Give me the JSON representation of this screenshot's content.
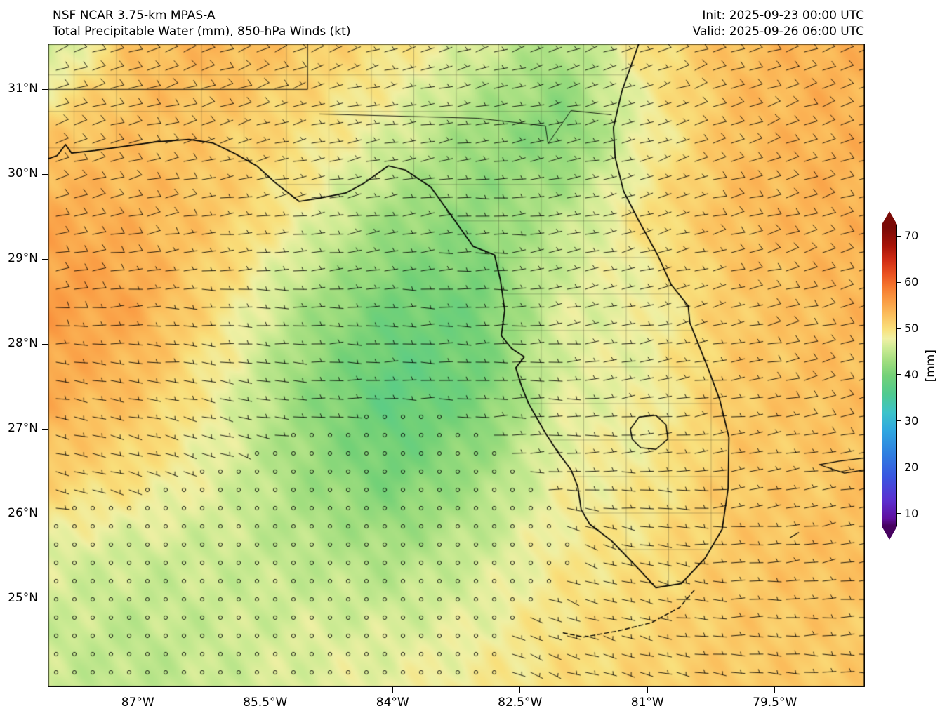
{
  "header": {
    "title_line1": "NSF NCAR 3.75-km MPAS-A",
    "title_line2": "Total Precipitable Water (mm), 850-hPa Winds (kt)",
    "init_label": "Init: 2025-09-23 00:00 UTC",
    "valid_label": "Valid: 2025-09-26 06:00 UTC"
  },
  "axes": {
    "x_ticks": [
      {
        "label": "87°W",
        "lon": -87
      },
      {
        "label": "85.5°W",
        "lon": -85.5
      },
      {
        "label": "84°W",
        "lon": -84
      },
      {
        "label": "82.5°W",
        "lon": -82.5
      },
      {
        "label": "81°W",
        "lon": -81
      },
      {
        "label": "79.5°W",
        "lon": -79.5
      }
    ],
    "y_ticks": [
      {
        "label": "31°N",
        "lat": 31
      },
      {
        "label": "30°N",
        "lat": 30
      },
      {
        "label": "29°N",
        "lat": 29
      },
      {
        "label": "28°N",
        "lat": 28
      },
      {
        "label": "27°N",
        "lat": 27
      },
      {
        "label": "26°N",
        "lat": 26
      },
      {
        "label": "25°N",
        "lat": 25
      }
    ]
  },
  "colorbar": {
    "label": "[mm]",
    "ticks": [
      70,
      60,
      50,
      40,
      30,
      20,
      10
    ],
    "vmin": 7.5,
    "vmax": 72.5
  },
  "chart_data": {
    "type": "heatmap",
    "model": "NSF NCAR 3.75-km MPAS-A",
    "title": "Total Precipitable Water (mm), 850-hPa Winds (kt)",
    "init": "2025-09-23 00:00 UTC",
    "valid": "2025-09-26 06:00 UTC",
    "units": "mm",
    "overlay": "850-hPa wind barbs (kt); open circles denote calm winds < 2.5 kt over the south-central Gulf",
    "extent": {
      "lon": [
        -88.06,
        -78.44
      ],
      "lat": [
        23.96,
        31.54
      ]
    },
    "grid_lons": [
      -88.1,
      -87,
      -86,
      -85,
      -84,
      -83,
      -82,
      -81,
      -80,
      -79,
      -78.4
    ],
    "grid_lats": [
      31.6,
      30.5,
      29.5,
      28.5,
      27.5,
      26.5,
      25.5,
      24.5,
      23.9
    ],
    "tpw": [
      [
        44,
        53,
        54,
        52,
        50,
        47,
        44,
        50,
        53,
        54,
        54
      ],
      [
        52,
        53,
        52,
        50,
        47,
        43,
        41,
        48,
        53,
        54,
        54
      ],
      [
        55,
        54,
        52,
        48,
        43,
        42,
        45,
        50,
        53,
        54,
        54
      ],
      [
        56,
        55,
        50,
        44,
        40,
        40,
        47,
        48,
        52,
        53,
        54
      ],
      [
        55,
        53,
        48,
        42,
        38,
        40,
        47,
        48,
        52,
        53,
        53
      ],
      [
        52,
        50,
        47,
        43,
        40,
        43,
        48,
        49,
        52,
        52,
        53
      ],
      [
        47,
        46,
        46,
        45,
        44,
        46,
        49,
        50,
        52,
        53,
        53
      ],
      [
        46,
        45,
        46,
        47,
        47,
        48,
        50,
        51,
        52,
        52,
        52
      ],
      [
        46,
        45,
        46,
        47,
        48,
        49,
        50,
        51,
        52,
        52,
        52
      ]
    ],
    "wind_kt": {
      "u": [
        [
          -8,
          -8,
          -8,
          -7,
          -7,
          -6,
          -6,
          -7,
          -9,
          -10,
          -10
        ],
        [
          -8,
          -8,
          -7,
          -7,
          -6,
          -5,
          -5,
          -6,
          -8,
          -9,
          -10
        ],
        [
          -9,
          -8,
          -7,
          -6,
          -5,
          -5,
          -5,
          -6,
          -8,
          -9,
          -9
        ],
        [
          -8,
          -7,
          -6,
          -5,
          -4,
          -4,
          -5,
          -5,
          -7,
          -8,
          -8
        ],
        [
          -7,
          -6,
          -5,
          -4,
          -3,
          -3,
          -4,
          -5,
          -7,
          -8,
          -8
        ],
        [
          -4,
          -3,
          -2,
          -1,
          -1,
          -2,
          -3,
          -4,
          -6,
          -7,
          -7
        ],
        [
          -1,
          0,
          0,
          0,
          0,
          -1,
          -2,
          -4,
          -5,
          -6,
          -6
        ],
        [
          0,
          0,
          0,
          0,
          -1,
          -2,
          -3,
          -4,
          -5,
          -5,
          -5
        ],
        [
          0,
          0,
          0,
          -1,
          -1,
          -2,
          -3,
          -4,
          -5,
          -5,
          -5
        ]
      ],
      "v": [
        [
          -3,
          -3,
          -3,
          -3,
          -2,
          -2,
          -2,
          -3,
          -3,
          -4,
          -4
        ],
        [
          -3,
          -2,
          -2,
          -2,
          -1,
          -1,
          -1,
          -2,
          -3,
          -3,
          -3
        ],
        [
          -2,
          -2,
          -1,
          -1,
          -1,
          0,
          -1,
          -2,
          -2,
          -3,
          -3
        ],
        [
          -1,
          0,
          0,
          0,
          0,
          0,
          -1,
          -1,
          -2,
          -2,
          -2
        ],
        [
          1,
          1,
          1,
          0,
          0,
          0,
          0,
          -1,
          -1,
          -2,
          -2
        ],
        [
          1,
          1,
          1,
          0,
          0,
          0,
          0,
          0,
          -1,
          -1,
          -1
        ],
        [
          0,
          0,
          0,
          0,
          0,
          0,
          1,
          1,
          0,
          -1,
          -1
        ],
        [
          0,
          0,
          0,
          0,
          0,
          1,
          1,
          1,
          0,
          0,
          0
        ],
        [
          0,
          0,
          0,
          0,
          0,
          1,
          1,
          1,
          1,
          0,
          0
        ]
      ]
    },
    "colormap": [
      [
        5,
        "#46025f"
      ],
      [
        9,
        "#5f0f9e"
      ],
      [
        13,
        "#5b2fd0"
      ],
      [
        18,
        "#3a55e0"
      ],
      [
        23,
        "#2f7ee0"
      ],
      [
        28,
        "#2fa6e0"
      ],
      [
        32,
        "#3cc3c9"
      ],
      [
        36,
        "#4fca8f"
      ],
      [
        40,
        "#74d177"
      ],
      [
        43,
        "#9fdd7e"
      ],
      [
        46,
        "#cdeb94"
      ],
      [
        48,
        "#f0f0a4"
      ],
      [
        50,
        "#f9e07c"
      ],
      [
        53,
        "#fbc05e"
      ],
      [
        56,
        "#fa9e45"
      ],
      [
        59,
        "#f67b30"
      ],
      [
        62,
        "#ea5220"
      ],
      [
        65,
        "#d02c14"
      ],
      [
        68,
        "#a81408"
      ],
      [
        72,
        "#7a0a06"
      ]
    ],
    "map": {
      "coast": [
        [
          -88.06,
          30.18
        ],
        [
          -87.95,
          30.22
        ],
        [
          -87.85,
          30.35
        ],
        [
          -87.78,
          30.25
        ],
        [
          -87.5,
          30.28
        ],
        [
          -87.15,
          30.33
        ],
        [
          -86.8,
          30.38
        ],
        [
          -86.4,
          30.41
        ],
        [
          -86.12,
          30.37
        ],
        [
          -85.85,
          30.24
        ],
        [
          -85.6,
          30.1
        ],
        [
          -85.38,
          29.9
        ],
        [
          -85.1,
          29.68
        ],
        [
          -84.85,
          29.72
        ],
        [
          -84.55,
          29.78
        ],
        [
          -84.33,
          29.9
        ],
        [
          -84.05,
          30.1
        ],
        [
          -83.85,
          30.05
        ],
        [
          -83.55,
          29.85
        ],
        [
          -83.3,
          29.5
        ],
        [
          -83.05,
          29.15
        ],
        [
          -82.8,
          29.05
        ],
        [
          -82.73,
          28.75
        ],
        [
          -82.68,
          28.4
        ],
        [
          -82.72,
          28.1
        ],
        [
          -82.6,
          27.95
        ],
        [
          -82.45,
          27.85
        ],
        [
          -82.55,
          27.72
        ],
        [
          -82.48,
          27.5
        ],
        [
          -82.4,
          27.3
        ],
        [
          -82.2,
          26.95
        ],
        [
          -82.05,
          26.72
        ],
        [
          -81.9,
          26.52
        ],
        [
          -81.82,
          26.32
        ],
        [
          -81.78,
          26.05
        ],
        [
          -81.68,
          25.88
        ],
        [
          -81.42,
          25.68
        ],
        [
          -81.1,
          25.35
        ],
        [
          -80.9,
          25.13
        ],
        [
          -80.6,
          25.18
        ],
        [
          -80.32,
          25.48
        ],
        [
          -80.12,
          25.82
        ],
        [
          -80.05,
          26.3
        ],
        [
          -80.04,
          26.9
        ],
        [
          -80.15,
          27.35
        ],
        [
          -80.3,
          27.75
        ],
        [
          -80.5,
          28.25
        ],
        [
          -80.52,
          28.45
        ],
        [
          -80.72,
          28.7
        ],
        [
          -80.88,
          29.05
        ],
        [
          -81.1,
          29.45
        ],
        [
          -81.28,
          29.8
        ],
        [
          -81.38,
          30.2
        ],
        [
          -81.4,
          30.55
        ],
        [
          -81.3,
          30.98
        ],
        [
          -81.15,
          31.4
        ],
        [
          -81.08,
          31.6
        ]
      ],
      "land_close": [
        [
          -81.08,
          31.7
        ],
        [
          -88.2,
          31.7
        ],
        [
          -88.2,
          30.18
        ]
      ],
      "lake_okeechobee": [
        [
          -81.2,
          27.0
        ],
        [
          -81.1,
          27.14
        ],
        [
          -80.9,
          27.16
        ],
        [
          -80.78,
          27.05
        ],
        [
          -80.76,
          26.88
        ],
        [
          -80.9,
          26.76
        ],
        [
          -81.08,
          26.78
        ],
        [
          -81.18,
          26.88
        ]
      ],
      "florida_keys": [
        [
          -80.45,
          25.1
        ],
        [
          -80.62,
          24.9
        ],
        [
          -80.95,
          24.72
        ],
        [
          -81.35,
          24.62
        ],
        [
          -81.75,
          24.55
        ],
        [
          -82.0,
          24.6
        ]
      ],
      "islands": [
        [
          [
            -78.44,
            26.52
          ],
          [
            -78.68,
            26.48
          ],
          [
            -78.98,
            26.58
          ],
          [
            -78.75,
            26.62
          ],
          [
            -78.44,
            26.66
          ]
        ],
        [
          [
            -79.32,
            25.72
          ],
          [
            -79.22,
            25.78
          ]
        ]
      ],
      "borders": [
        [
          [
            -88.06,
            31.0
          ],
          [
            -85.0,
            31.0
          ],
          [
            -85.0,
            31.62
          ]
        ],
        [
          [
            -84.86,
            30.71
          ],
          [
            -83.0,
            30.66
          ],
          [
            -82.2,
            30.57
          ],
          [
            -82.17,
            30.36
          ],
          [
            -81.9,
            30.75
          ],
          [
            -81.42,
            30.7
          ]
        ]
      ]
    }
  }
}
